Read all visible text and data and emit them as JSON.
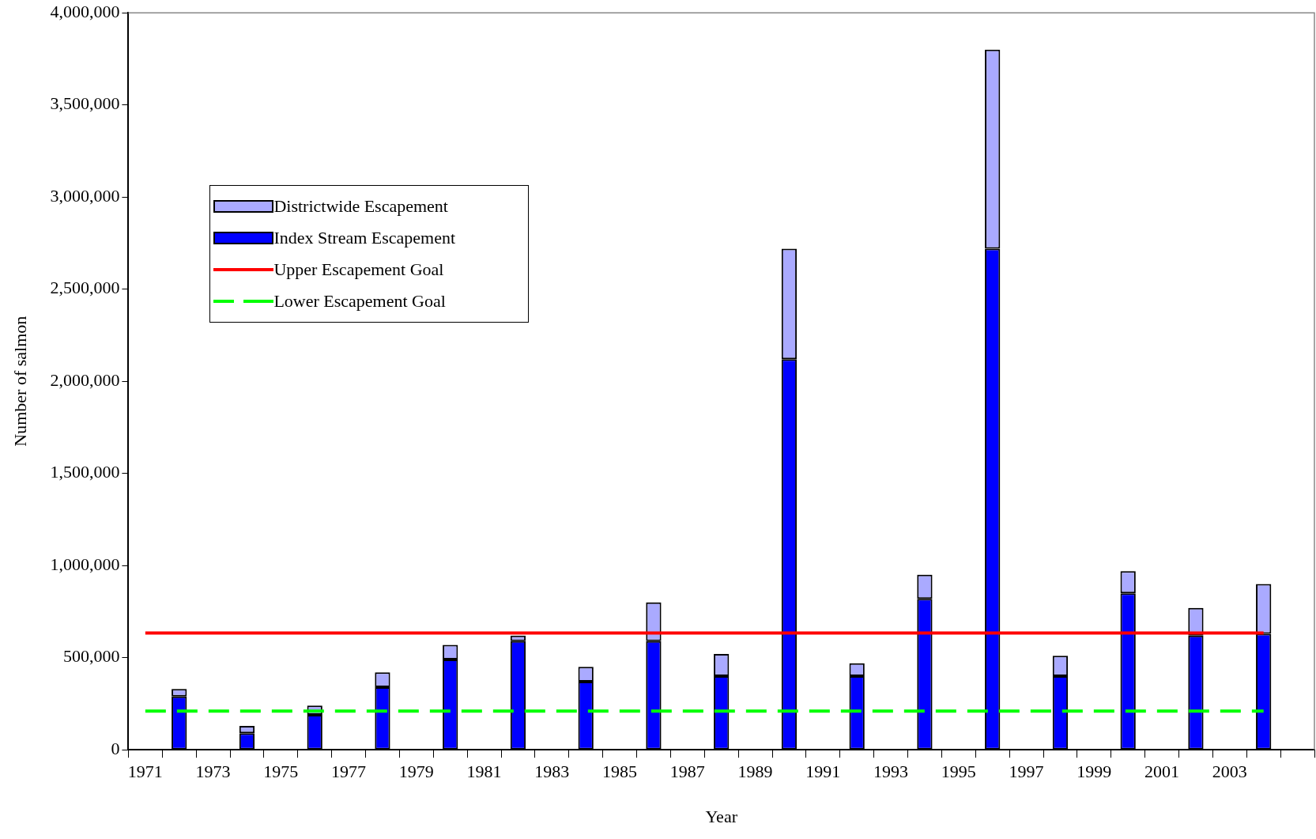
{
  "chart_data": {
    "type": "bar",
    "stacked": true,
    "xlabel": "Year",
    "ylabel": "Number of salmon",
    "categories": [
      "1971",
      null,
      "1973",
      null,
      "1975",
      null,
      "1977",
      null,
      "1979",
      null,
      "1981",
      null,
      "1983",
      null,
      "1985",
      null,
      "1987",
      null,
      "1989",
      null,
      "1991",
      null,
      "1993",
      null,
      "1995",
      null,
      "1997",
      null,
      "1999",
      null,
      "2001",
      null,
      "2003",
      null,
      null
    ],
    "series": [
      {
        "name": "Index Stream Escapement",
        "color": "#0000ff",
        "values": [
          null,
          290000,
          null,
          90000,
          null,
          190000,
          null,
          340000,
          null,
          490000,
          null,
          590000,
          null,
          370000,
          null,
          590000,
          null,
          400000,
          null,
          2120000,
          null,
          400000,
          null,
          820000,
          null,
          2720000,
          null,
          400000,
          null,
          850000,
          null,
          620000,
          null,
          630000,
          null
        ]
      },
      {
        "name": "Districtwide Escapement",
        "color": "#aaaaff",
        "values": [
          null,
          40000,
          null,
          40000,
          null,
          50000,
          null,
          80000,
          null,
          80000,
          null,
          30000,
          null,
          80000,
          null,
          210000,
          null,
          120000,
          null,
          600000,
          null,
          70000,
          null,
          130000,
          null,
          1080000,
          null,
          110000,
          null,
          120000,
          null,
          150000,
          null,
          270000,
          null
        ]
      },
      {
        "name": "Upper Escapement Goal",
        "type": "line",
        "color": "#ff0000",
        "line_style": "solid",
        "values": [
          634000,
          634000,
          634000,
          634000,
          634000,
          634000,
          634000,
          634000,
          634000,
          634000,
          634000,
          634000,
          634000,
          634000,
          634000,
          634000,
          634000,
          634000,
          634000,
          634000,
          634000,
          634000,
          634000,
          634000,
          634000,
          634000,
          634000,
          634000,
          634000,
          634000,
          634000,
          634000,
          634000,
          634000,
          null
        ]
      },
      {
        "name": "Lower Escapement Goal",
        "type": "line",
        "color": "#00ff00",
        "line_style": "dashed",
        "values": [
          210000,
          210000,
          210000,
          210000,
          210000,
          210000,
          210000,
          210000,
          210000,
          210000,
          210000,
          210000,
          210000,
          210000,
          210000,
          210000,
          210000,
          210000,
          210000,
          210000,
          210000,
          210000,
          210000,
          210000,
          210000,
          210000,
          210000,
          210000,
          210000,
          210000,
          210000,
          210000,
          210000,
          210000,
          null
        ]
      }
    ],
    "ylim": [
      0,
      4000000
    ],
    "yticks": [
      {
        "value": 0,
        "label": "0"
      },
      {
        "value": 500000,
        "label": "500,000"
      },
      {
        "value": 1000000,
        "label": "1,000,000"
      },
      {
        "value": 1500000,
        "label": "1,500,000"
      },
      {
        "value": 2000000,
        "label": "2,000,000"
      },
      {
        "value": 2500000,
        "label": "2,500,000"
      },
      {
        "value": 3000000,
        "label": "3,000,000"
      },
      {
        "value": 3500000,
        "label": "3,500,000"
      },
      {
        "value": 4000000,
        "label": "4,000,000"
      }
    ],
    "legend": "top left",
    "marker": "none",
    "grid": false
  }
}
